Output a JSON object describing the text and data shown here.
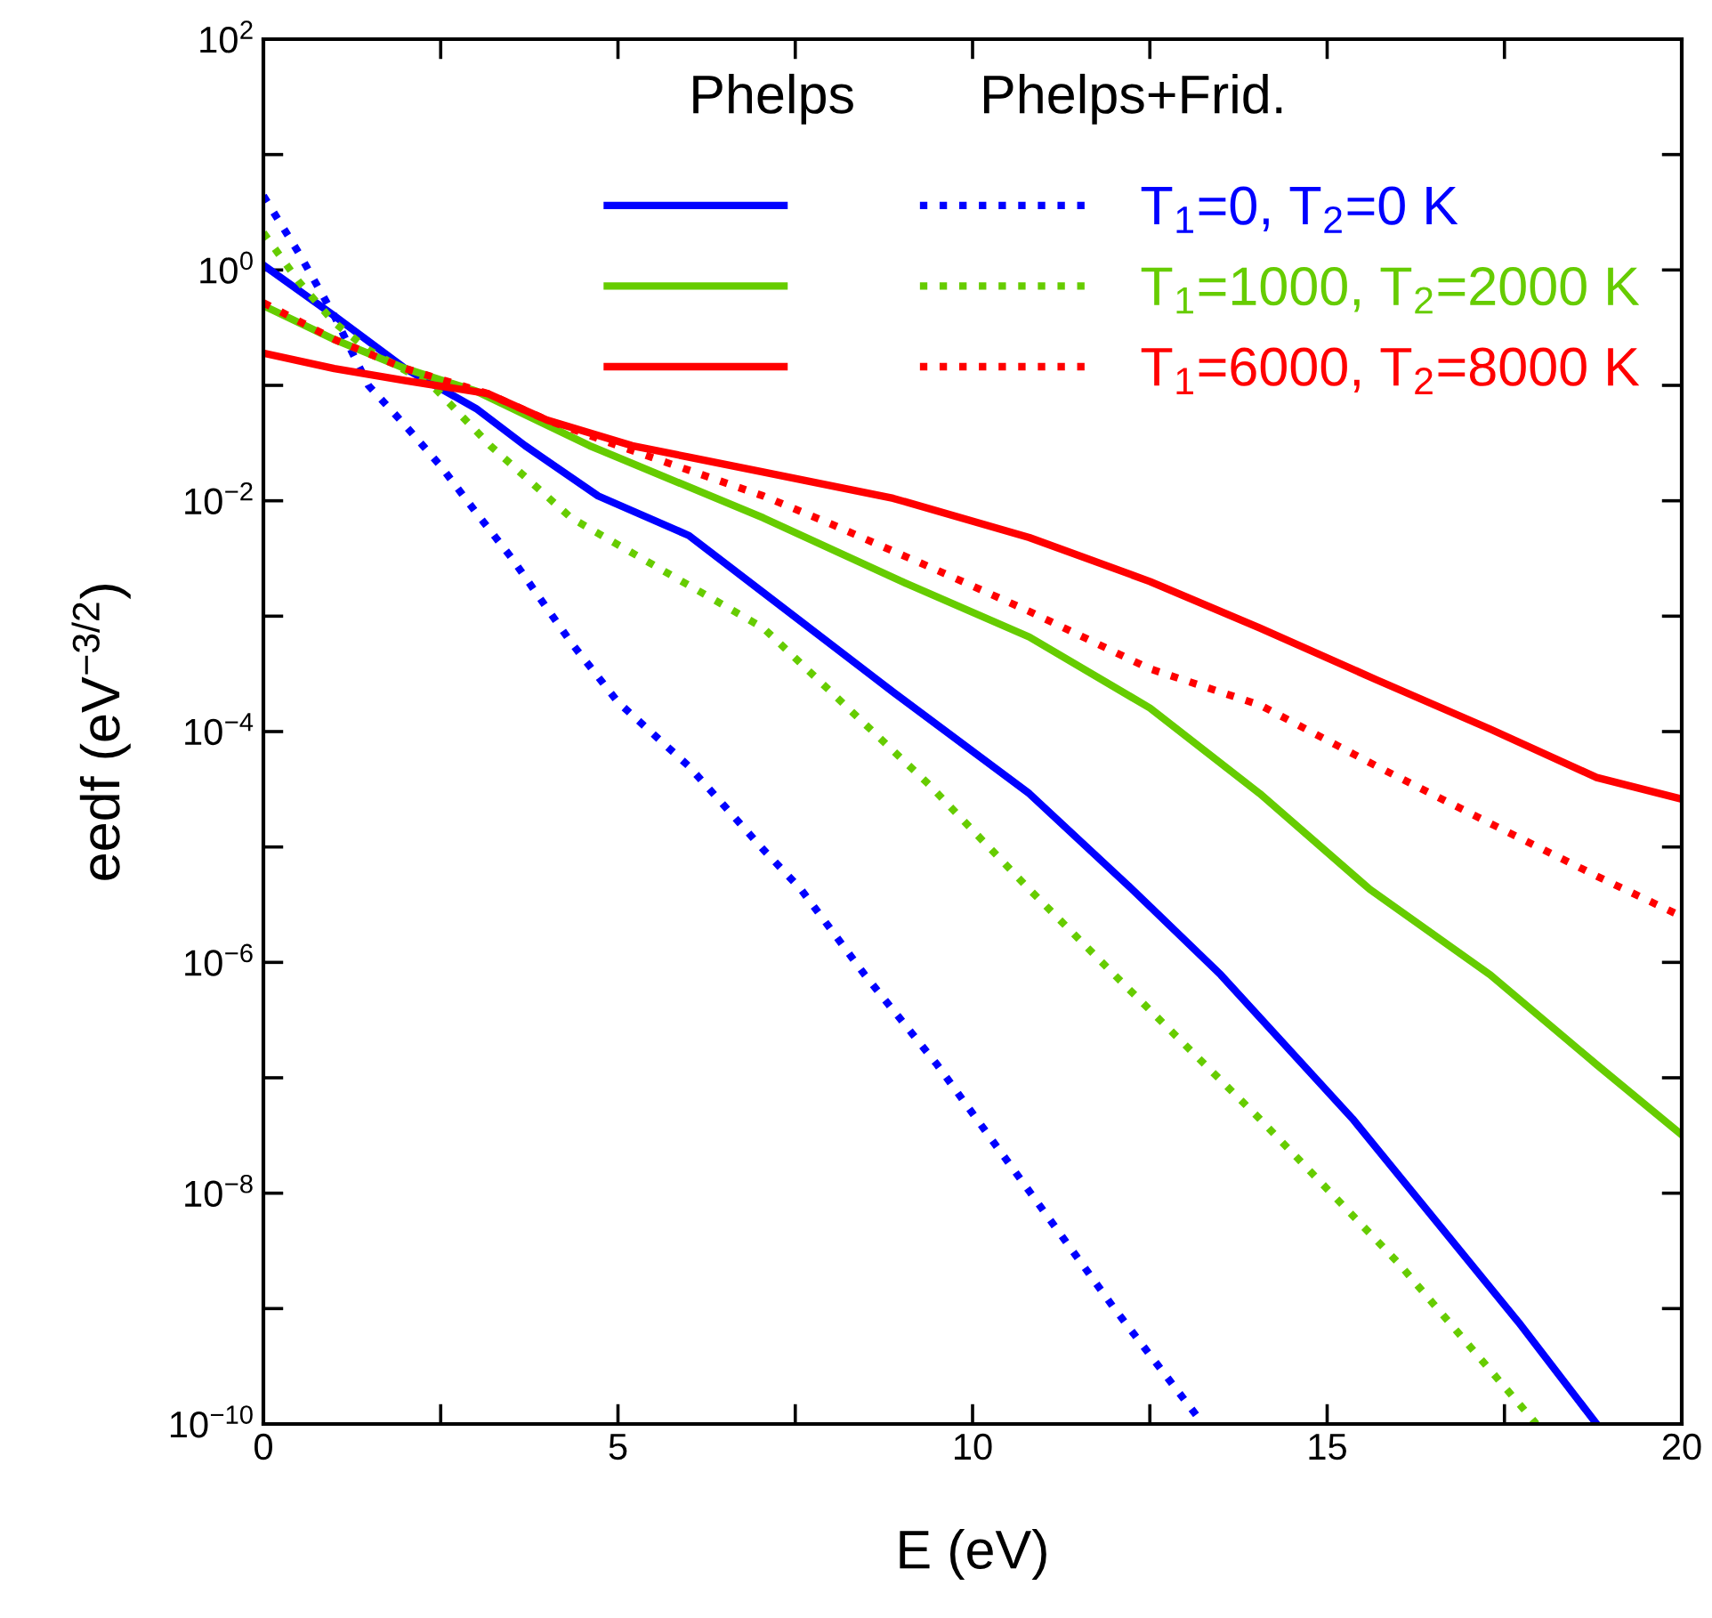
{
  "chart_data": {
    "type": "line",
    "xlabel": "E (eV)",
    "ylabel": "eedf (eV$^{−3/2}$)",
    "log": "y",
    "xlim": [
      0,
      20
    ],
    "ylim": [
      1e-10,
      100
    ],
    "xticks": [
      0,
      {
        "value": 2.5,
        "label": null
      },
      5,
      {
        "value": 7.5,
        "label": null
      },
      10,
      {
        "value": 12.5,
        "label": null
      },
      15,
      {
        "value": 17.5,
        "label": null
      },
      20
    ],
    "yticks": [
      {
        "value": 1e-10,
        "label": "10$^{−10}$"
      },
      {
        "value": 1e-09,
        "label": null
      },
      {
        "value": 1e-08,
        "label": "10$^{−8}$"
      },
      {
        "value": 1e-07,
        "label": null
      },
      {
        "value": 1e-06,
        "label": "10$^{−6}$"
      },
      {
        "value": 1e-05,
        "label": null
      },
      {
        "value": 0.0001,
        "label": "10$^{−4}$"
      },
      {
        "value": 0.001,
        "label": null
      },
      {
        "value": 0.01,
        "label": "10$^{−2}$"
      },
      {
        "value": 0.1,
        "label": null
      },
      {
        "value": 1,
        "label": "10$^{0}$"
      },
      {
        "value": 10,
        "label": null
      },
      {
        "value": 100,
        "label": "10$^{2}$"
      }
    ],
    "grid": false,
    "legend": "top right",
    "annotations": [
      "Phelps",
      "Phelps+Frid."
    ],
    "series": [
      {
        "color": "#0000ff",
        "line_style": "solid",
        "x": [
          0,
          1,
          2,
          3,
          3.69,
          4.72,
          6,
          7.05,
          8.88,
          10.8,
          12.25,
          13.5,
          15.36,
          17.7,
          18.8
        ],
        "values": [
          1.1,
          0.4,
          0.14,
          0.063,
          0.03,
          0.011,
          0.005,
          0.0016,
          0.00022,
          2.9e-05,
          4.3e-06,
          7.8e-07,
          4.4e-08,
          7.6e-10,
          1e-10
        ]
      },
      {
        "name": "T$_{1}$=0, T$_{2}$=0 K",
        "color": "#0000ff",
        "line_style": "dotted",
        "x": [
          0,
          0.5,
          1,
          1.48,
          2,
          2.5,
          3,
          3.5,
          4.34,
          5,
          6,
          7.05,
          7.58,
          8.48,
          9.5,
          10.82,
          12,
          13.25
        ],
        "values": [
          4.4,
          1.4,
          0.4,
          0.1,
          0.045,
          0.02,
          0.0079,
          0.0032,
          0.00059,
          0.00018,
          5e-05,
          9.5e-06,
          4.3e-06,
          7.8e-07,
          1.3e-07,
          1e-08,
          1e-09,
          1e-10
        ]
      },
      {
        "color": "#66cc00",
        "line_style": "solid",
        "x": [
          0,
          1,
          2,
          3,
          4.6,
          7.05,
          9,
          10.8,
          12.5,
          14.05,
          15.6,
          17.3,
          18.8,
          20
        ],
        "values": [
          0.49,
          0.25,
          0.14,
          0.089,
          0.03,
          0.0071,
          0.002,
          0.00066,
          0.00016,
          2.9e-05,
          4.3e-06,
          7.8e-07,
          1.3e-07,
          3.2e-08
        ]
      },
      {
        "name": "T$_{1}$=1000, T$_{2}$=2000 K",
        "color": "#66cc00",
        "line_style": "dotted",
        "x": [
          0,
          0.5,
          1,
          1.5,
          2.38,
          3.2,
          4.34,
          7.05,
          9.38,
          10.8,
          12,
          14.05,
          16,
          17.95
        ],
        "values": [
          2.1,
          0.79,
          0.35,
          0.2,
          0.1,
          0.03,
          0.0071,
          0.00079,
          3.5e-05,
          4.3e-06,
          7.8e-07,
          4.4e-08,
          2.5e-09,
          1e-10
        ]
      },
      {
        "color": "#ff0000",
        "line_style": "solid",
        "x": [
          0,
          1,
          2,
          3.16,
          4,
          5.2,
          7,
          8.88,
          10.8,
          12.5,
          14.05,
          15.7,
          17.3,
          18.8,
          20
        ],
        "values": [
          0.19,
          0.14,
          0.11,
          0.085,
          0.05,
          0.03,
          0.018,
          0.0105,
          0.0048,
          0.002,
          0.00079,
          0.00028,
          0.000105,
          4e-05,
          2.6e-05
        ]
      },
      {
        "name": "T$_{1}$=6000, T$_{2}$=8000 K",
        "color": "#ff0000",
        "line_style": "dotted",
        "x": [
          0,
          1,
          2,
          3.16,
          4,
          5,
          7.05,
          8,
          9.5,
          10.8,
          12.5,
          14.05,
          15.7,
          17.3,
          18.8,
          20
        ],
        "values": [
          0.52,
          0.25,
          0.14,
          0.085,
          0.05,
          0.03,
          0.011,
          0.0063,
          0.0025,
          0.0011,
          0.00035,
          0.00017,
          5e-05,
          1.6e-05,
          5.6e-06,
          2.5e-06
        ]
      }
    ]
  }
}
